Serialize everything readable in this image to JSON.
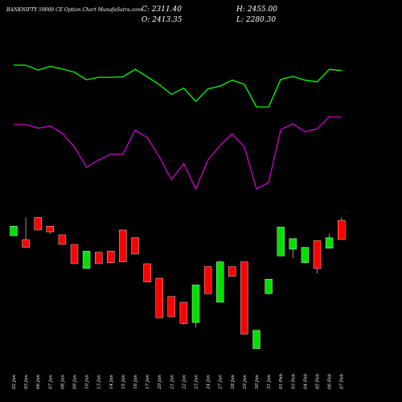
{
  "header": {
    "title": "BANKNIFTY 59000  CE Option  Chart MunafaSutra.com",
    "close": "C: 2311.40",
    "open": "O: 2413.35",
    "high": "H: 2455.00",
    "low": "L: 2280.30"
  },
  "colors": {
    "background": "#000000",
    "up": "#00e000",
    "down": "#ff0000",
    "line_green": "#00ff00",
    "line_magenta": "#cc00cc",
    "text": "#ffffff"
  },
  "chart_data": [
    {
      "type": "line",
      "series": [
        {
          "values": [
            1,
            1,
            0.88,
            0.97,
            0.91,
            0.83,
            0.65,
            0.71,
            0.71,
            0.72,
            0.9,
            0.72,
            0.53,
            0.3,
            0.45,
            0.13,
            0.43,
            0.5,
            0.64,
            0.54,
            0,
            0,
            0.66,
            0.73,
            0.64,
            0.6,
            0.9,
            0.87
          ]
        }
      ]
    },
    {
      "type": "line",
      "series": [
        {
          "values": [
            0.89,
            0.89,
            0.84,
            0.87,
            0.77,
            0.58,
            0.3,
            0.4,
            0.48,
            0.48,
            0.81,
            0.71,
            0.44,
            0.13,
            0.35,
            0,
            0.4,
            0.6,
            0.76,
            0.58,
            0,
            0.09,
            0.82,
            0.9,
            0.79,
            0.83,
            1,
            0.99
          ]
        }
      ]
    },
    {
      "type": "candlestick",
      "categories": [
        "02 Jan",
        "03 Jan",
        "06 Jan",
        "07 Jan",
        "08 Jan",
        "09 Jan",
        "10 Jan",
        "13 Jan",
        "14 Jan",
        "15 Jan",
        "16 Jan",
        "17 Jan",
        "20 Jan",
        "21 Jan",
        "22 Jan",
        "23 Jan",
        "24 Jan",
        "27 Jan",
        "28 Jan",
        "29 Jan",
        "30 Jan",
        "31 Jan",
        "01 Feb",
        "03 Feb",
        "04 Feb",
        "05 Feb",
        "06 Feb",
        "07 Feb"
      ],
      "ohlc": [
        [
          0.2,
          0.26,
          0.16,
          0.24
        ],
        [
          0.07,
          0.3,
          0.38,
          0.32
        ],
        [
          0.15,
          0.07,
          0.2,
          0.13
        ],
        [
          0.2,
          0.16,
          0.22,
          0.24
        ],
        [
          0.26,
          0.25,
          0.35,
          0.33
        ],
        [
          0.36,
          0.35,
          0.55,
          0.52
        ],
        [
          0.6,
          0.6,
          0.42,
          0.45
        ],
        [
          0.44,
          0.43,
          0.55,
          0.52
        ],
        [
          0.48,
          0.42,
          0.54,
          0.5
        ],
        [
          0.2,
          0.2,
          0.53,
          0.5
        ],
        [
          0.3,
          0.28,
          0.45,
          0.41
        ],
        [
          0.58,
          0.55,
          0.74,
          0.7
        ],
        [
          0.73,
          0.7,
          1.11,
          0.95
        ],
        [
          0.91,
          0.89,
          1.1,
          1.07
        ],
        [
          0.97,
          0.95,
          1.17,
          1.18
        ],
        [
          1.21,
          1.16,
          0.77,
          0.82
        ],
        [
          0.6,
          0.58,
          0.86,
          0.74
        ],
        [
          0.95,
          0.95,
          0.53,
          0.52
        ],
        [
          0.6,
          0.58,
          0.68,
          0.64
        ],
        [
          0.6,
          0.53,
          1.28,
          1.21
        ],
        [
          1.43,
          1.43,
          1.24,
          1.36
        ],
        [
          0.87,
          0.86,
          0.71,
          0.72
        ],
        [
          0.47,
          0.47,
          0.17,
          0.18
        ],
        [
          0.49,
          0.4,
          0.29,
          0.3
        ],
        [
          0.55,
          0.54,
          0.38,
          0.44
        ],
        [
          0.32,
          0.31,
          0.6,
          0.65
        ],
        [
          0.39,
          0.39,
          0.28,
          0.24
        ],
        [
          0.07,
          0.1,
          0.3,
          0.28
        ]
      ]
    }
  ]
}
